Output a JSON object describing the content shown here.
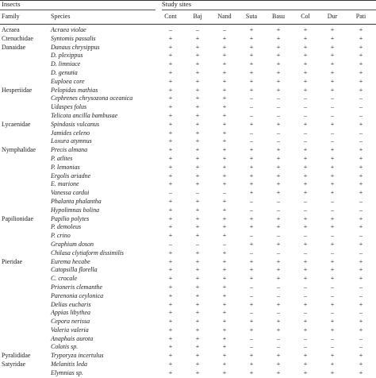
{
  "header": {
    "group_left": "Insects",
    "group_right": "Study sites",
    "col_family": "Family",
    "col_species": "Species",
    "sites": [
      "Cont",
      "Baj",
      "Nand",
      "Suta",
      "Basu",
      "Col",
      "Dur",
      "Pati"
    ]
  },
  "rows": [
    {
      "family": "Acraea",
      "species": "Acraea violae",
      "marks": [
        "–",
        "–",
        "–",
        "+",
        "+",
        "+",
        "+",
        "+"
      ]
    },
    {
      "family": "Ctenuchidae",
      "species": "Syntomis passalis",
      "marks": [
        "+",
        "+",
        "+",
        "+",
        "+",
        "+",
        "+",
        "+"
      ]
    },
    {
      "family": "Danaidae",
      "species": "Danaus chrysippus",
      "marks": [
        "+",
        "+",
        "+",
        "+",
        "+",
        "+",
        "+",
        "+"
      ]
    },
    {
      "family": "",
      "species": "D. plexippus",
      "marks": [
        "+",
        "+",
        "+",
        "+",
        "+",
        "+",
        "+",
        "+"
      ]
    },
    {
      "family": "",
      "species": "D. limniace",
      "marks": [
        "+",
        "+",
        "+",
        "+",
        "+",
        "+",
        "+",
        "+"
      ]
    },
    {
      "family": "",
      "species": "D. genutia",
      "marks": [
        "+",
        "+",
        "+",
        "+",
        "+",
        "+",
        "+",
        "+"
      ]
    },
    {
      "family": "",
      "species": "Euploea core",
      "marks": [
        "+",
        "+",
        "+",
        "+",
        "+",
        "+",
        "+",
        "+"
      ]
    },
    {
      "family": "Hesperiidae",
      "species": "Pelopidas mathias",
      "marks": [
        "+",
        "+",
        "+",
        "+",
        "+",
        "+",
        "+",
        "+"
      ]
    },
    {
      "family": "",
      "species": "Cephrenes chrysozona oceanica",
      "marks": [
        "+",
        "+",
        "+",
        "–",
        "–",
        "–",
        "–",
        "–"
      ]
    },
    {
      "family": "",
      "species": "Udaspes folus",
      "marks": [
        "+",
        "+",
        "+",
        "–",
        "–",
        "–",
        "–",
        "–"
      ]
    },
    {
      "family": "",
      "species": "Telicota ancilla bambusae",
      "marks": [
        "+",
        "+",
        "+",
        "–",
        "–",
        "–",
        "–",
        "–"
      ]
    },
    {
      "family": "Lycaenidae",
      "species": "Spindasis vulcanus",
      "marks": [
        "+",
        "+",
        "+",
        "+",
        "+",
        "+",
        "+",
        "+"
      ]
    },
    {
      "family": "",
      "species": "Jamides celeno",
      "marks": [
        "+",
        "+",
        "+",
        "–",
        "–",
        "–",
        "–",
        "–"
      ]
    },
    {
      "family": "",
      "species": "Loxura atymnus",
      "marks": [
        "+",
        "+",
        "+",
        "–",
        "–",
        "–",
        "–",
        "–"
      ]
    },
    {
      "family": "Nymphalidae",
      "species": "Precis almana",
      "marks": [
        "+",
        "+",
        "+",
        "+",
        "+",
        "+",
        "+",
        "+"
      ]
    },
    {
      "family": "",
      "species": "P. atlites",
      "marks": [
        "+",
        "+",
        "+",
        "+",
        "+",
        "+",
        "+",
        "+"
      ]
    },
    {
      "family": "",
      "species": "P. lemonias",
      "marks": [
        "+",
        "+",
        "+",
        "+",
        "+",
        "+",
        "+",
        "+"
      ]
    },
    {
      "family": "",
      "species": "Ergolis ariadne",
      "marks": [
        "+",
        "+",
        "+",
        "+",
        "+",
        "+",
        "+",
        "+"
      ]
    },
    {
      "family": "",
      "species": "E. marione",
      "marks": [
        "+",
        "+",
        "+",
        "+",
        "+",
        "+",
        "+",
        "+"
      ]
    },
    {
      "family": "",
      "species": "Vanessa cardui",
      "marks": [
        "–",
        "–",
        "–",
        "+",
        "+",
        "+",
        "+",
        "+"
      ]
    },
    {
      "family": "",
      "species": "Phalanta phalantha",
      "marks": [
        "+",
        "+",
        "+",
        "–",
        "–",
        "–",
        "–",
        "–"
      ]
    },
    {
      "family": "",
      "species": "Hypolimnas bolina",
      "marks": [
        "+",
        "+",
        "+",
        "–",
        "–",
        "–",
        "–",
        "–"
      ]
    },
    {
      "family": "Papilionidae",
      "species": "Papilio polytes",
      "marks": [
        "+",
        "+",
        "+",
        "+",
        "+",
        "+",
        "+",
        "+"
      ]
    },
    {
      "family": "",
      "species": "P. demoleus",
      "marks": [
        "+",
        "+",
        "+",
        "+",
        "+",
        "+",
        "+",
        "+"
      ]
    },
    {
      "family": "",
      "species": "P. crino",
      "marks": [
        "+",
        "+",
        "+",
        "–",
        "–",
        "–",
        "–",
        "–"
      ]
    },
    {
      "family": "",
      "species": "Graphium doson",
      "marks": [
        "–",
        "–",
        "–",
        "+",
        "+",
        "+",
        "+",
        "+"
      ]
    },
    {
      "family": "",
      "species": "Chilasa clytiaform dissimilis",
      "marks": [
        "+",
        "+",
        "+",
        "–",
        "–",
        "–",
        "–",
        "–"
      ]
    },
    {
      "family": "Pieridae",
      "species": "Eurema hecabe",
      "marks": [
        "+",
        "+",
        "+",
        "+",
        "+",
        "+",
        "+",
        "+"
      ]
    },
    {
      "family": "",
      "species": "Catopsilla florella",
      "marks": [
        "+",
        "+",
        "+",
        "+",
        "+",
        "+",
        "+",
        "+"
      ]
    },
    {
      "family": "",
      "species": "C. crocale",
      "marks": [
        "+",
        "+",
        "+",
        "+",
        "+",
        "+",
        "+",
        "+"
      ]
    },
    {
      "family": "",
      "species": "Prioneris clemanthe",
      "marks": [
        "+",
        "+",
        "+",
        "–",
        "–",
        "–",
        "–",
        "–"
      ]
    },
    {
      "family": "",
      "species": "Parenonia ceylonica",
      "marks": [
        "+",
        "+",
        "+",
        "–",
        "–",
        "–",
        "–",
        "–"
      ]
    },
    {
      "family": "",
      "species": "Delias eucharis",
      "marks": [
        "+",
        "+",
        "+",
        "+",
        "+",
        "+",
        "+",
        "+"
      ]
    },
    {
      "family": "",
      "species": "Appias libythea",
      "marks": [
        "+",
        "+",
        "+",
        "–",
        "–",
        "–",
        "–",
        "–"
      ]
    },
    {
      "family": "",
      "species": "Cepora nerissa",
      "marks": [
        "+",
        "+",
        "+",
        "+",
        "+",
        "+",
        "+",
        "+"
      ]
    },
    {
      "family": "",
      "species": "Valeria valeria",
      "marks": [
        "+",
        "+",
        "+",
        "+",
        "+",
        "+",
        "+",
        "+"
      ]
    },
    {
      "family": "",
      "species": "Anaphais aurota",
      "marks": [
        "+",
        "+",
        "+",
        "–",
        "–",
        "–",
        "–",
        "–"
      ]
    },
    {
      "family": "",
      "species": "Colotis sp.",
      "marks": [
        "+",
        "+",
        "+",
        "–",
        "–",
        "–",
        "–",
        "–"
      ]
    },
    {
      "family": "Pyralididae",
      "species": "Tryporyza incertulus",
      "marks": [
        "+",
        "+",
        "+",
        "+",
        "+",
        "+",
        "+",
        "+"
      ]
    },
    {
      "family": "Satyridae",
      "species": "Melanitis leda",
      "marks": [
        "+",
        "+",
        "+",
        "+",
        "+",
        "+",
        "+",
        "+"
      ]
    },
    {
      "family": "",
      "species": "Elymnias sp.",
      "marks": [
        "+",
        "+",
        "+",
        "+",
        "+",
        "+",
        "+",
        "+"
      ]
    }
  ]
}
